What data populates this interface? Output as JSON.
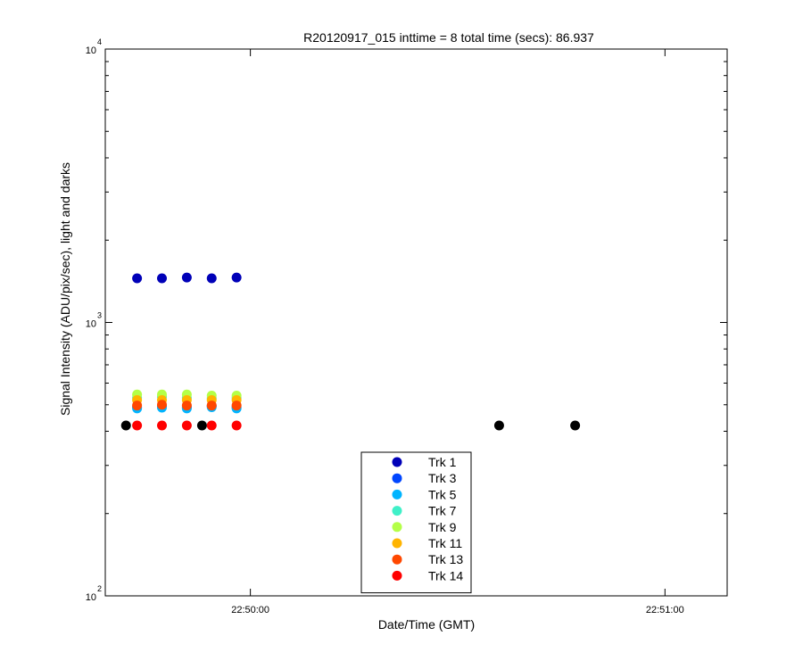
{
  "chart_data": {
    "type": "scatter",
    "title": "R20120917_015 inttime = 8 total time (secs): 86.937",
    "xlabel": "Date/Time (GMT)",
    "ylabel": "Signal Intensity (ADU/pix/sec), light and darks",
    "y_scale": "log",
    "ylim": [
      100,
      10000
    ],
    "y_ticks": [
      {
        "value": 100,
        "base": "10",
        "exp": "2"
      },
      {
        "value": 1000,
        "base": "10",
        "exp": "3"
      },
      {
        "value": 10000,
        "base": "10",
        "exp": "4"
      }
    ],
    "xlim": [
      "22:49:39",
      "22:51:09"
    ],
    "x_ticks": [
      "22:50:00",
      "22:51:00"
    ],
    "legend_position": "bottom-center",
    "dark_points": {
      "color": "#000000",
      "x": [
        "22:49:42",
        "22:49:53",
        "22:50:36",
        "22:50:47"
      ],
      "y": [
        420,
        420,
        420,
        420
      ]
    },
    "series": [
      {
        "name": "Trk 1",
        "color": "#0000b8",
        "x": [
          "22:49:43.6",
          "22:49:47.2",
          "22:49:50.8",
          "22:49:54.4",
          "22:49:58"
        ],
        "y": [
          1450,
          1450,
          1460,
          1450,
          1460
        ]
      },
      {
        "name": "Trk 3",
        "color": "#0046ff",
        "x": [
          "22:49:43.6",
          "22:49:47.2",
          "22:49:50.8",
          "22:49:54.4",
          "22:49:58"
        ],
        "y": [
          490,
          495,
          490,
          495,
          490
        ]
      },
      {
        "name": "Trk 5",
        "color": "#00b4ff",
        "x": [
          "22:49:43.6",
          "22:49:47.2",
          "22:49:50.8",
          "22:49:54.4",
          "22:49:58"
        ],
        "y": [
          485,
          488,
          485,
          490,
          485
        ]
      },
      {
        "name": "Trk 7",
        "color": "#40f0c8",
        "x": [
          "22:49:43.6",
          "22:49:47.2",
          "22:49:50.8",
          "22:49:54.4",
          "22:49:58"
        ],
        "y": [
          530,
          535,
          530,
          528,
          530
        ]
      },
      {
        "name": "Trk 9",
        "color": "#b4ff48",
        "x": [
          "22:49:43.6",
          "22:49:47.2",
          "22:49:50.8",
          "22:49:54.4",
          "22:49:58"
        ],
        "y": [
          545,
          545,
          545,
          540,
          540
        ]
      },
      {
        "name": "Trk 11",
        "color": "#ffb400",
        "x": [
          "22:49:43.6",
          "22:49:47.2",
          "22:49:50.8",
          "22:49:54.4",
          "22:49:58"
        ],
        "y": [
          520,
          520,
          520,
          520,
          520
        ]
      },
      {
        "name": "Trk 13",
        "color": "#ff4800",
        "x": [
          "22:49:43.6",
          "22:49:47.2",
          "22:49:50.8",
          "22:49:54.4",
          "22:49:58"
        ],
        "y": [
          497,
          500,
          497,
          497,
          497
        ]
      },
      {
        "name": "Trk 14",
        "color": "#ff0000",
        "x": [
          "22:49:43.6",
          "22:49:47.2",
          "22:49:50.8",
          "22:49:54.4",
          "22:49:58"
        ],
        "y": [
          420,
          420,
          420,
          420,
          420
        ]
      }
    ]
  }
}
